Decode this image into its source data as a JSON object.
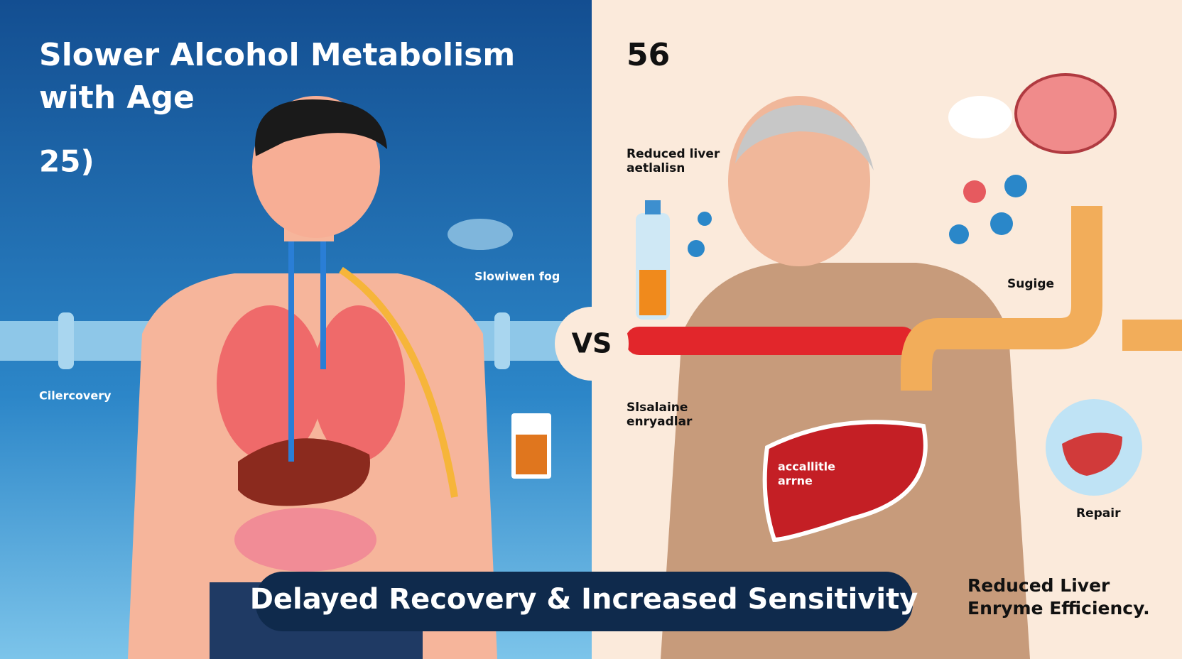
{
  "header": {
    "title_lines": [
      "Slower Alcohol Metabolism",
      "with Age"
    ]
  },
  "left_panel": {
    "age": "25)",
    "fog_label": "Slowiwen fog",
    "recovery_label": "Cilercovery"
  },
  "center": {
    "label": "VS"
  },
  "right_panel": {
    "age": "56",
    "liver_note": [
      "Reduced liver",
      "aetlalisn"
    ],
    "enzyme_note": [
      "Slsalaine",
      "enryadlar"
    ],
    "pipe_label": "Sugige",
    "liver_label": [
      "accallitle",
      "arrne"
    ],
    "repair_label": "Repair",
    "efficiency_note": [
      "Reduced Liver",
      "Enryme Efficiency."
    ]
  },
  "banner": {
    "text": "Delayed Recovery & Increased Sensitivity"
  }
}
